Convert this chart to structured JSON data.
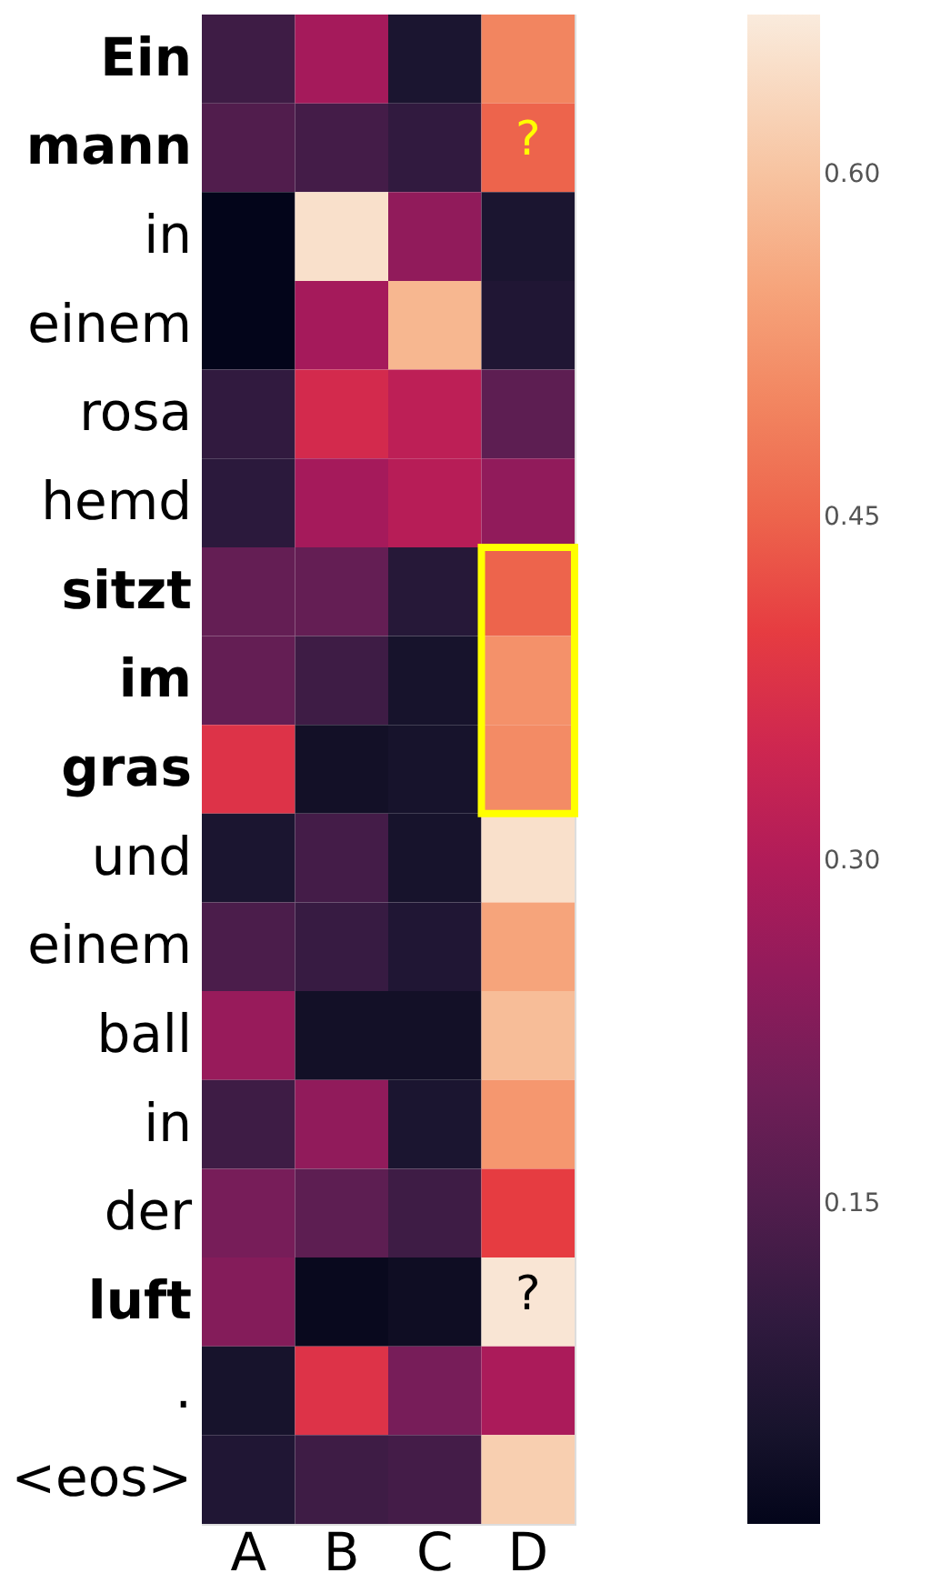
{
  "chart_data": {
    "type": "heatmap",
    "categories": [
      "A",
      "B",
      "C",
      "D"
    ],
    "y_categories": [
      "Ein",
      "mann",
      "in",
      "einem",
      "rosa",
      "hemd",
      "sitzt",
      "im",
      "gras",
      "und",
      "einem",
      "ball",
      "in",
      "der",
      "luft",
      ".",
      "<eos>"
    ],
    "cells": [
      [
        0.12,
        0.28,
        0.06,
        0.5
      ],
      [
        0.15,
        0.13,
        0.1,
        0.45
      ],
      [
        0.01,
        0.65,
        0.25,
        0.06
      ],
      [
        0.01,
        0.28,
        0.58,
        0.07
      ],
      [
        0.1,
        0.36,
        0.32,
        0.17
      ],
      [
        0.09,
        0.28,
        0.31,
        0.25
      ],
      [
        0.18,
        0.18,
        0.08,
        0.45
      ],
      [
        0.18,
        0.12,
        0.05,
        0.52
      ],
      [
        0.38,
        0.04,
        0.05,
        0.51
      ],
      [
        0.06,
        0.13,
        0.05,
        0.65
      ],
      [
        0.14,
        0.11,
        0.07,
        0.55
      ],
      [
        0.26,
        0.04,
        0.04,
        0.59
      ],
      [
        0.12,
        0.25,
        0.06,
        0.53
      ],
      [
        0.21,
        0.17,
        0.12,
        0.4
      ],
      [
        0.23,
        0.02,
        0.03,
        0.66
      ],
      [
        0.05,
        0.38,
        0.21,
        0.29
      ],
      [
        0.07,
        0.12,
        0.13,
        0.62
      ]
    ],
    "clim": [
      0.01,
      0.67
    ],
    "cticks": [
      0.15,
      {
        "value": 0.3,
        "label": "0.30"
      },
      0.45,
      {
        "value": 0.6,
        "label": "0.60"
      }
    ],
    "colors": [
      "#03051a",
      "#4c1d4b",
      "#a11a5b",
      "#e83f3f",
      "#f69c73",
      "#faebdd"
    ],
    "annotations": [
      "?",
      "?"
    ]
  }
}
